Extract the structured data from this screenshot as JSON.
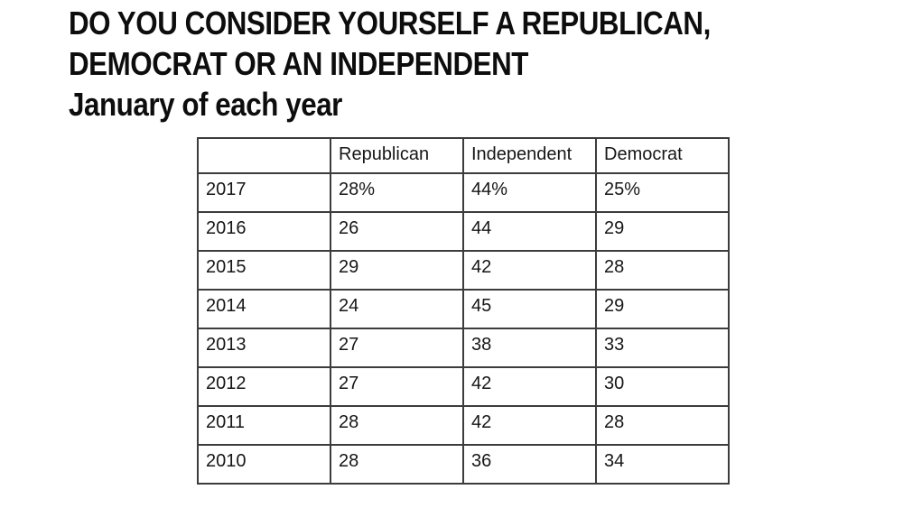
{
  "title": {
    "line1": "DO YOU CONSIDER YOURSELF A REPUBLICAN,",
    "line2": "DEMOCRAT OR AN INDEPENDENT",
    "subtitle": "January of each year"
  },
  "table": {
    "columns": [
      "",
      "Republican",
      "Independent",
      "Democrat"
    ],
    "rows": [
      {
        "year": "2017",
        "values": [
          "28%",
          "44%",
          "25%"
        ]
      },
      {
        "year": "2016",
        "values": [
          "26",
          "44",
          "29"
        ]
      },
      {
        "year": "2015",
        "values": [
          "29",
          "42",
          "28"
        ]
      },
      {
        "year": "2014",
        "values": [
          "24",
          "45",
          "29"
        ]
      },
      {
        "year": "2013",
        "values": [
          "27",
          "38",
          "33"
        ]
      },
      {
        "year": "2012",
        "values": [
          "27",
          "42",
          "30"
        ]
      },
      {
        "year": "2011",
        "values": [
          "28",
          "42",
          "28"
        ]
      },
      {
        "year": "2010",
        "values": [
          "28",
          "36",
          "34"
        ]
      }
    ]
  },
  "chart_data": {
    "type": "table",
    "title": "DO YOU CONSIDER YOURSELF A REPUBLICAN, DEMOCRAT OR AN INDEPENDENT",
    "subtitle": "January of each year",
    "categories": [
      "2017",
      "2016",
      "2015",
      "2014",
      "2013",
      "2012",
      "2011",
      "2010"
    ],
    "series": [
      {
        "name": "Republican",
        "values": [
          28,
          26,
          29,
          24,
          27,
          27,
          28,
          28
        ]
      },
      {
        "name": "Independent",
        "values": [
          44,
          44,
          42,
          45,
          38,
          42,
          42,
          36
        ]
      },
      {
        "name": "Democrat",
        "values": [
          25,
          29,
          28,
          29,
          33,
          30,
          28,
          34
        ]
      }
    ],
    "unit": "percent",
    "note": "Percent sign shown only on 2017 row values"
  },
  "colors": {
    "background": "#ffffff",
    "title_text": "#0d0d0d",
    "cell_text": "#161616",
    "table_border": "#3c3c3c"
  }
}
